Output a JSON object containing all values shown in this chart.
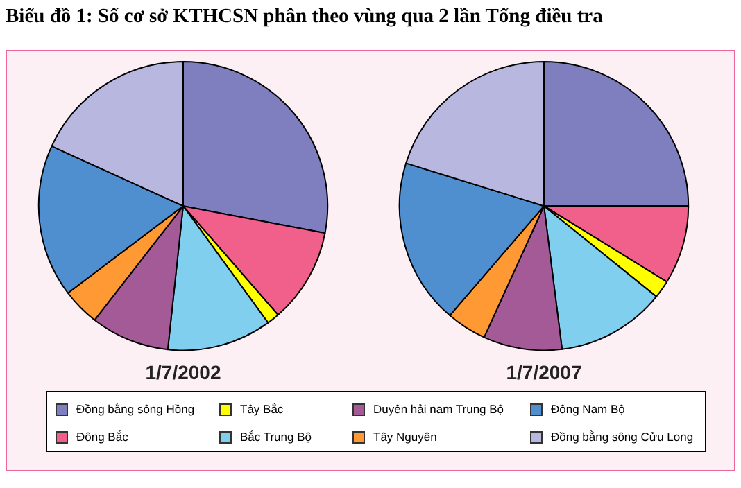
{
  "chart_data": {
    "type": "pie",
    "title": "Biểu đồ 1: Số cơ sở KTHCSN phân theo vùng qua 2 lần Tổng điều tra",
    "categories": [
      "Đồng bằng sông Hồng",
      "Đông Bắc",
      "Tây Bắc",
      "Bắc Trung Bộ",
      "Duyên hải nam Trung Bộ",
      "Tây Nguyên",
      "Đông Nam Bộ",
      "Đồng bằng sông Cửu Long"
    ],
    "colors": [
      "#7f7fbf",
      "#f0608a",
      "#ffff00",
      "#80cfef",
      "#a45a96",
      "#ff9933",
      "#4f8fcf",
      "#b7b7e0"
    ],
    "series": [
      {
        "name": "1/7/2002",
        "values": [
          28.0,
          10.6,
          1.4,
          11.7,
          8.8,
          4.2,
          17.1,
          18.2
        ]
      },
      {
        "name": "1/7/2007",
        "values": [
          25.0,
          8.8,
          2.0,
          12.2,
          8.8,
          4.5,
          18.5,
          20.2
        ]
      }
    ],
    "legend": "bottom"
  }
}
